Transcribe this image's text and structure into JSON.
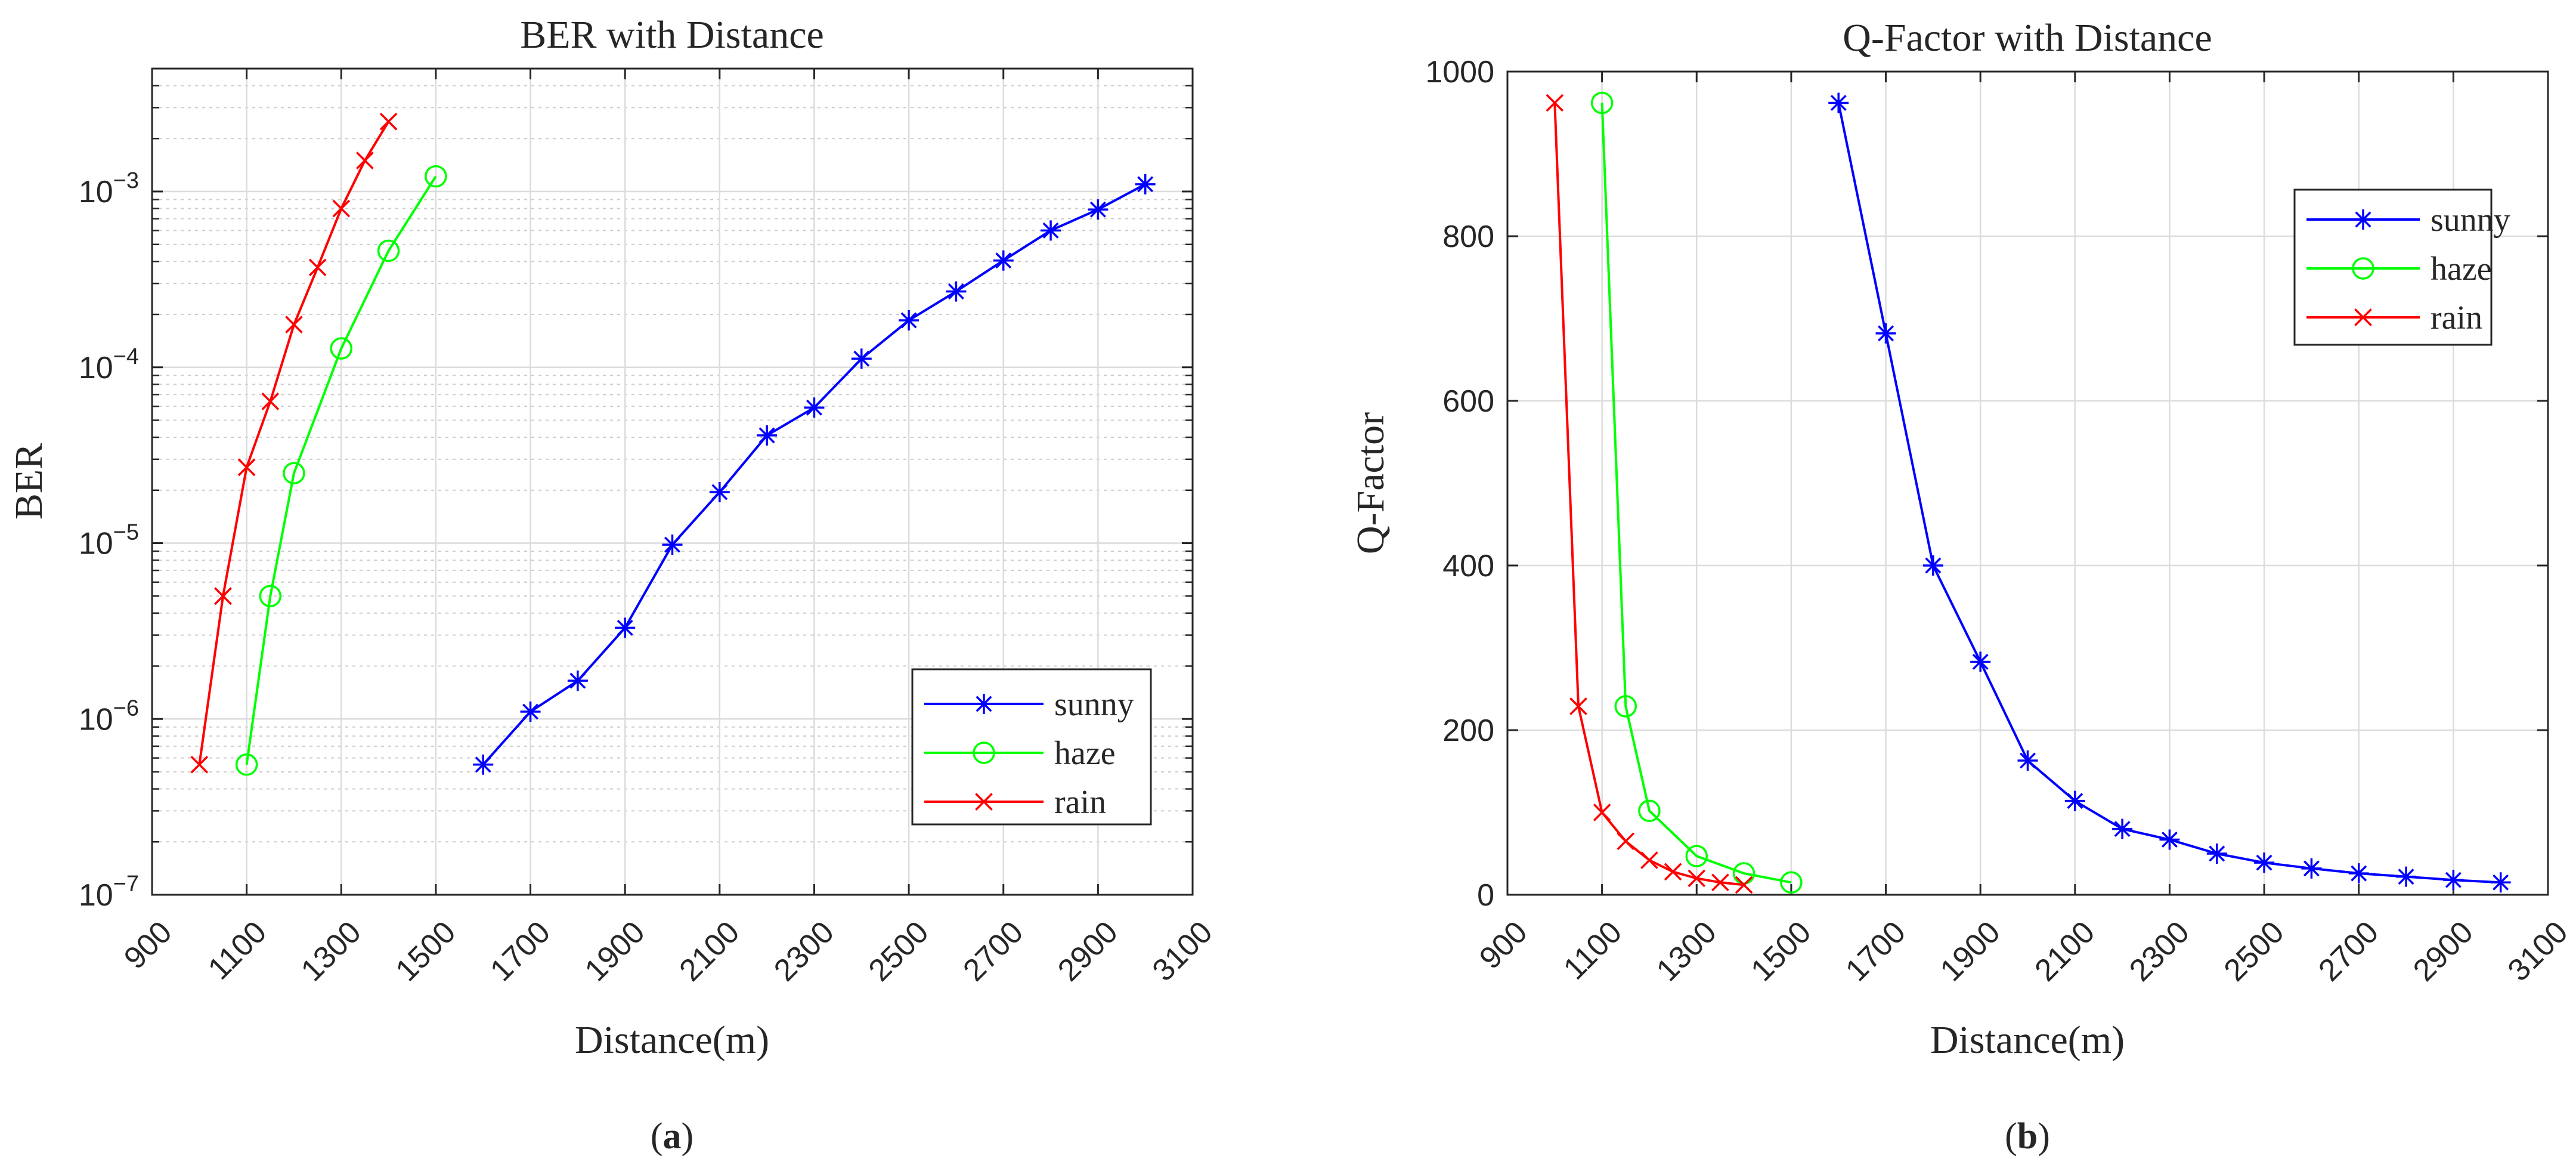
{
  "panels": [
    {
      "label_open": "(",
      "label_letter": "a",
      "label_close": ")",
      "chart_data": {
        "type": "line",
        "title": "BER with Distance",
        "xlabel": "Distance(m)",
        "ylabel": "BER",
        "yscale": "log",
        "xlim": [
          900,
          3100
        ],
        "ylim": [
          1e-07,
          0.005
        ],
        "xticks": [
          900,
          1100,
          1300,
          1500,
          1700,
          1900,
          2100,
          2300,
          2500,
          2700,
          2900,
          3100
        ],
        "yticks": [
          {
            "value": 1e-07,
            "base": "10",
            "exp": "−7"
          },
          {
            "value": 1e-06,
            "base": "10",
            "exp": "−6"
          },
          {
            "value": 1e-05,
            "base": "10",
            "exp": "−5"
          },
          {
            "value": 0.0001,
            "base": "10",
            "exp": "−4"
          },
          {
            "value": 0.001,
            "base": "10",
            "exp": "−3"
          }
        ],
        "grid": true,
        "minor_grid": true,
        "legend_position": "bottom-right",
        "series": [
          {
            "name": "sunny",
            "color": "#0000ff",
            "marker": "asterisk",
            "x": [
              1600,
              1700,
              1800,
              1900,
              2000,
              2100,
              2200,
              2300,
              2400,
              2500,
              2600,
              2700,
              2800,
              2900,
              3000
            ],
            "y": [
              5.5e-07,
              1.1e-06,
              1.65e-06,
              3.3e-06,
              9.8e-06,
              1.95e-05,
              4.1e-05,
              5.9e-05,
              0.000112,
              0.000185,
              0.00027,
              0.000405,
              0.0006,
              0.00079,
              0.0011
            ]
          },
          {
            "name": "haze",
            "color": "#00ff00",
            "marker": "circle",
            "x": [
              1100,
              1150,
              1200,
              1300,
              1400,
              1500
            ],
            "y": [
              5.5e-07,
              5e-06,
              2.5e-05,
              0.000128,
              0.00046,
              0.00122
            ]
          },
          {
            "name": "rain",
            "color": "#ff0000",
            "marker": "cross",
            "x": [
              1000,
              1050,
              1100,
              1150,
              1200,
              1250,
              1300,
              1350,
              1400
            ],
            "y": [
              5.5e-07,
              5e-06,
              2.7e-05,
              6.4e-05,
              0.000175,
              0.00037,
              0.0008,
              0.0015,
              0.0025
            ]
          }
        ]
      }
    },
    {
      "label_open": "(",
      "label_letter": "b",
      "label_close": ")",
      "chart_data": {
        "type": "line",
        "title": "Q-Factor with Distance",
        "xlabel": "Distance(m)",
        "ylabel": "Q-Factor",
        "yscale": "linear",
        "xlim": [
          900,
          3100
        ],
        "ylim": [
          0,
          1000
        ],
        "xticks": [
          900,
          1100,
          1300,
          1500,
          1700,
          1900,
          2100,
          2300,
          2500,
          2700,
          2900,
          3100
        ],
        "yticks": [
          {
            "value": 0,
            "text": "0"
          },
          {
            "value": 200,
            "text": "200"
          },
          {
            "value": 400,
            "text": "400"
          },
          {
            "value": 600,
            "text": "600"
          },
          {
            "value": 800,
            "text": "800"
          },
          {
            "value": 1000,
            "text": "1000"
          }
        ],
        "grid": true,
        "minor_grid": false,
        "legend_position": "top-right",
        "series": [
          {
            "name": "sunny",
            "color": "#0000ff",
            "marker": "asterisk",
            "x": [
              1600,
              1700,
              1800,
              1900,
              2000,
              2100,
              2200,
              2300,
              2400,
              2500,
              2600,
              2700,
              2800,
              2900,
              3000
            ],
            "y": [
              962,
              682,
              400,
              283,
              163,
              114,
              80,
              67,
              50,
              39,
              32,
              26,
              22,
              18,
              15
            ]
          },
          {
            "name": "haze",
            "color": "#00ff00",
            "marker": "circle",
            "x": [
              1100,
              1150,
              1200,
              1300,
              1400,
              1500
            ],
            "y": [
              962,
              229,
              102,
              47,
              26,
              15
            ]
          },
          {
            "name": "rain",
            "color": "#ff0000",
            "marker": "cross",
            "x": [
              1000,
              1050,
              1100,
              1150,
              1200,
              1250,
              1300,
              1350,
              1400
            ],
            "y": [
              962,
              229,
              100,
              65,
              42,
              28,
              20,
              15,
              12
            ]
          }
        ]
      }
    }
  ]
}
